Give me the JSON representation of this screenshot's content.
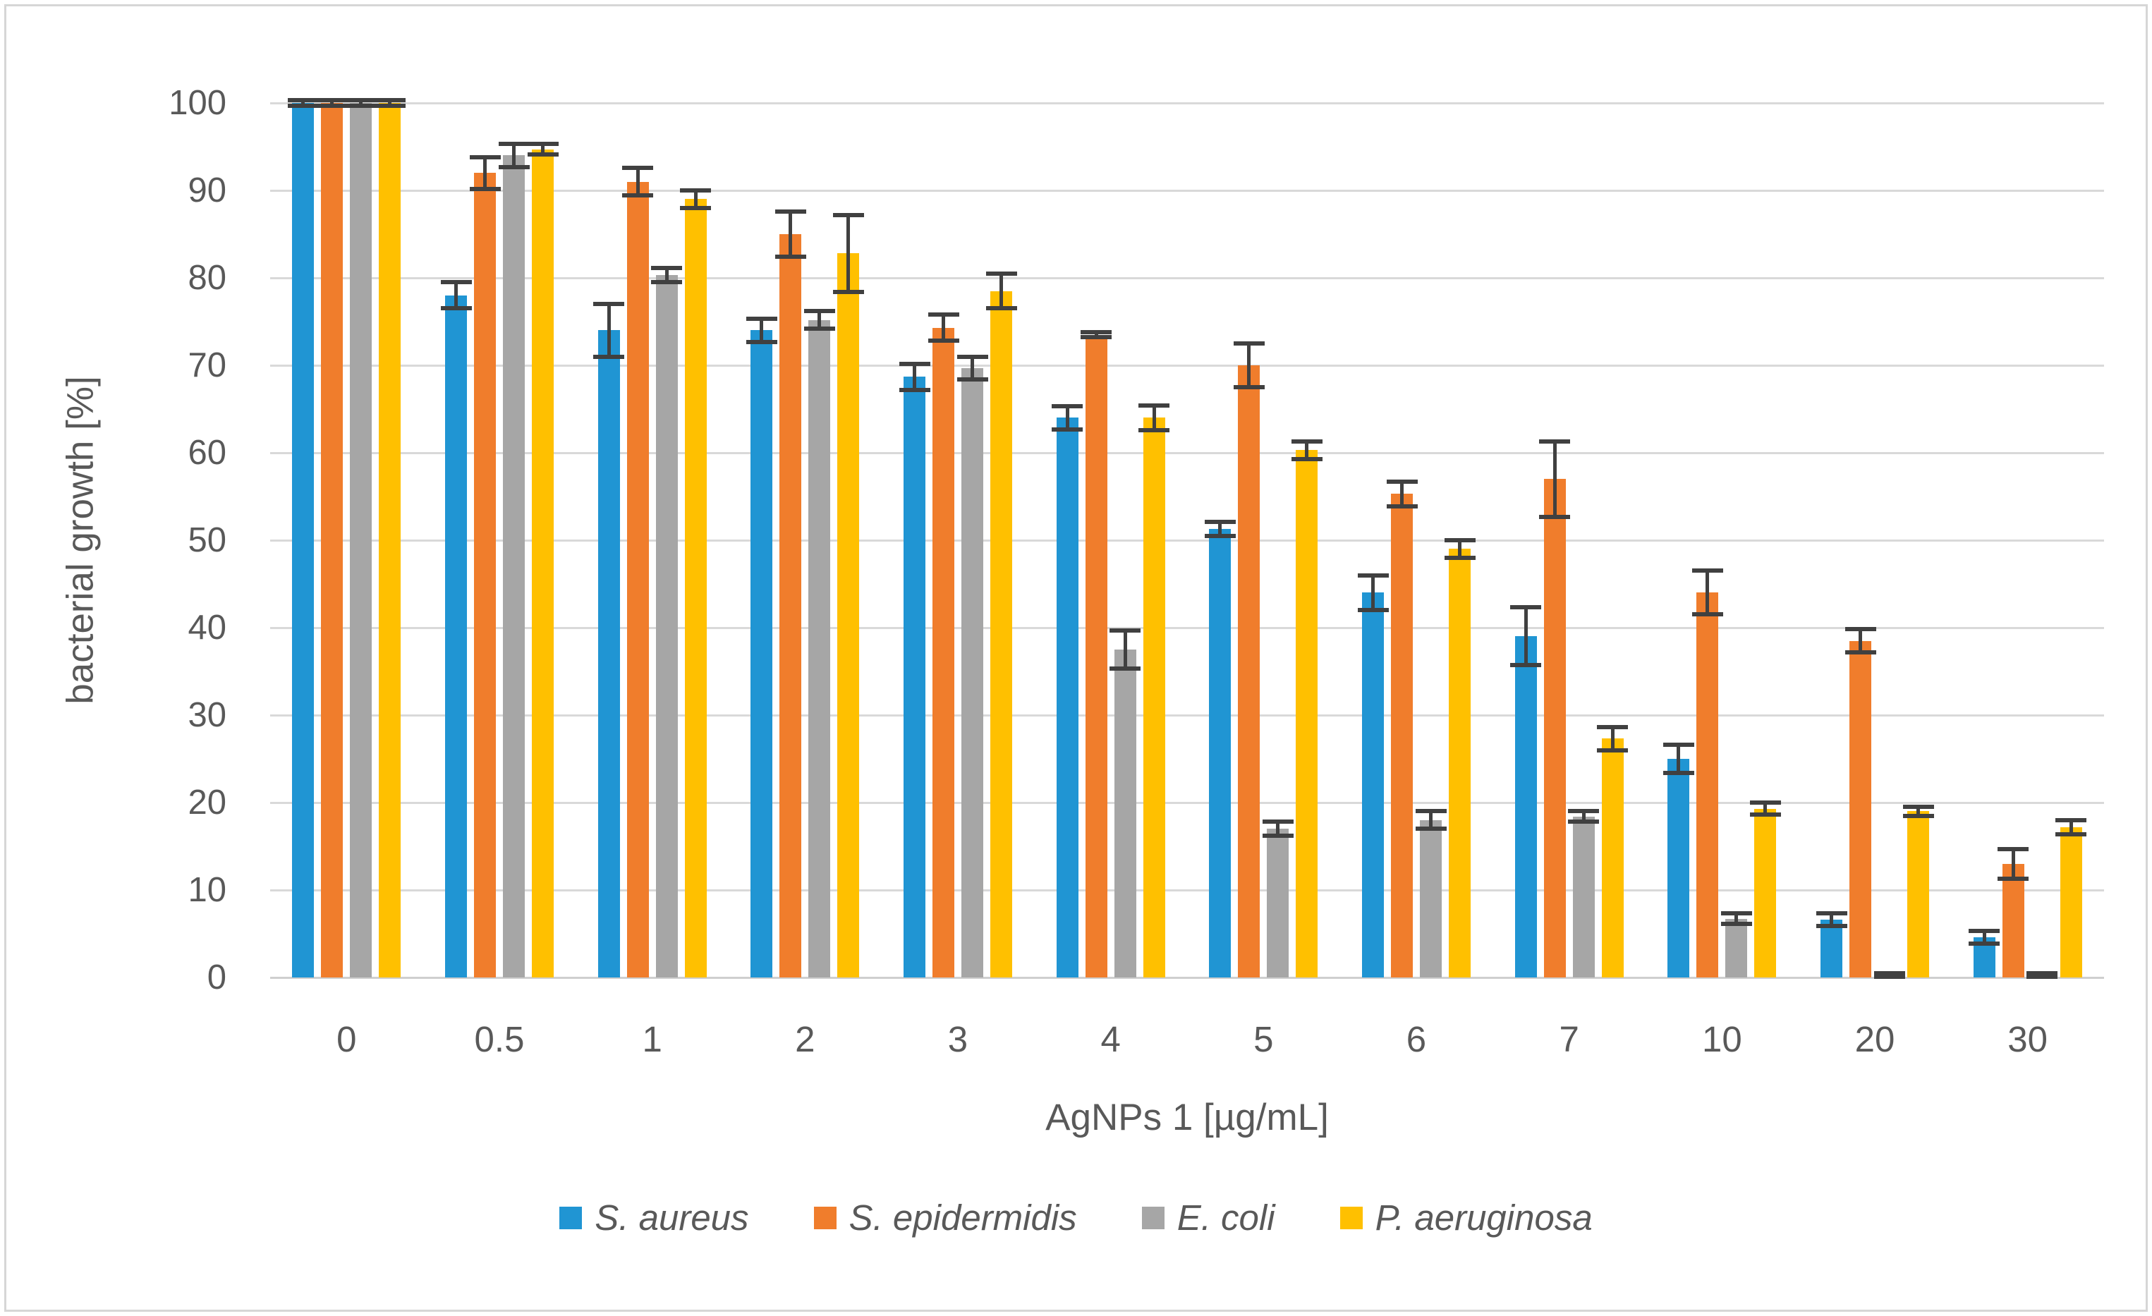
{
  "figure": {
    "background": "#ffffff",
    "border_color": "#d6d6d6"
  },
  "chart_data": {
    "type": "bar",
    "title": "",
    "xlabel": "AgNPs 1 [µg/mL]",
    "ylabel": "bacterial growth [%]",
    "categories": [
      "0",
      "0.5",
      "1",
      "2",
      "3",
      "4",
      "5",
      "6",
      "7",
      "10",
      "20",
      "30"
    ],
    "ylim": [
      0,
      100
    ],
    "ytick_step": 10,
    "ytick_labels": [
      "0",
      "10",
      "20",
      "30",
      "40",
      "50",
      "60",
      "70",
      "80",
      "90",
      "100"
    ],
    "grid": true,
    "legend_position": "bottom",
    "gridline_color": "#d9d9d9",
    "axis_text_color": "#595959",
    "error_bar_color": "#404040",
    "series": [
      {
        "name": "S. aureus",
        "color": "#2095d3",
        "values": [
          100,
          78,
          74,
          74,
          68.7,
          64,
          51.3,
          44,
          39,
          25,
          6.6,
          4.6
        ],
        "errors": [
          0.3,
          1.5,
          3,
          1.3,
          1.5,
          1.3,
          0.8,
          2,
          3.3,
          1.6,
          0.7,
          0.7
        ]
      },
      {
        "name": "S. epidermidis",
        "color": "#f07d2c",
        "values": [
          100,
          92,
          91,
          85,
          74.3,
          73.5,
          70,
          55.3,
          57,
          44,
          38.5,
          13
        ],
        "errors": [
          0.3,
          1.8,
          1.6,
          2.6,
          1.5,
          0.3,
          2.5,
          1.4,
          4.3,
          2.5,
          1.3,
          1.7
        ]
      },
      {
        "name": "E. coli",
        "color": "#a6a6a6",
        "values": [
          100,
          94,
          80.3,
          75.2,
          69.7,
          37.5,
          17,
          18,
          18.4,
          6.7,
          0.3,
          0.3
        ],
        "errors": [
          0.3,
          1.3,
          0.8,
          1,
          1.3,
          2.2,
          0.8,
          1,
          0.6,
          0.6,
          0.2,
          0.2
        ]
      },
      {
        "name": "P. aeruginosa",
        "color": "#ffc000",
        "values": [
          100,
          94.7,
          89,
          82.8,
          78.5,
          64,
          60.3,
          49,
          27.3,
          19.3,
          19,
          17.2
        ],
        "errors": [
          0.3,
          0.6,
          1,
          4.4,
          2,
          1.4,
          1,
          1,
          1.3,
          0.7,
          0.5,
          0.8
        ]
      }
    ]
  }
}
